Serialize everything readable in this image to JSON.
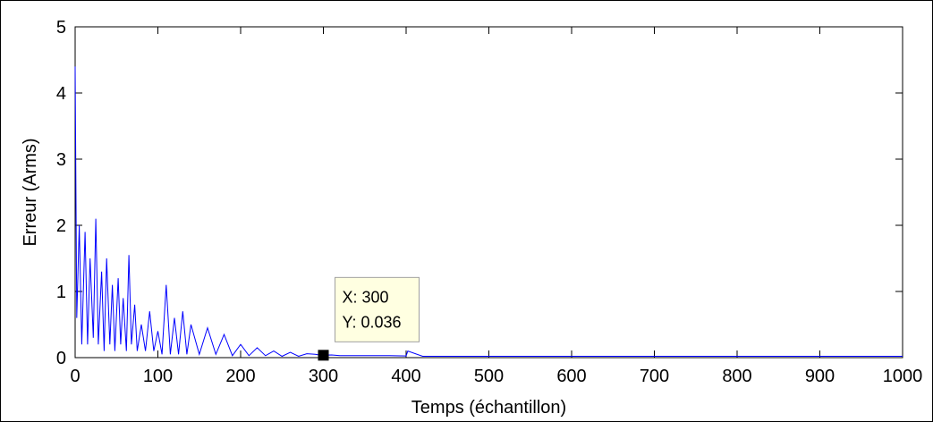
{
  "chart_data": {
    "type": "line",
    "xlabel": "Temps (échantillon)",
    "ylabel": "Erreur (Arms)",
    "xlim": [
      0,
      1000
    ],
    "ylim": [
      0,
      5
    ],
    "xticks": [
      0,
      100,
      200,
      300,
      400,
      500,
      600,
      700,
      800,
      900,
      1000
    ],
    "yticks": [
      0,
      1,
      2,
      3,
      4,
      5
    ],
    "grid": false,
    "line_color": "#0000ff",
    "series": [
      {
        "x": [
          0,
          2,
          5,
          8,
          12,
          15,
          18,
          22,
          25,
          28,
          32,
          35,
          38,
          42,
          45,
          48,
          52,
          55,
          58,
          62,
          65,
          68,
          72,
          75,
          80,
          85,
          90,
          95,
          100,
          105,
          110,
          115,
          120,
          125,
          130,
          135,
          140,
          150,
          160,
          170,
          180,
          190,
          200,
          210,
          220,
          230,
          240,
          250,
          260,
          270,
          280,
          290,
          295,
          300,
          310,
          320,
          350,
          380,
          400,
          402,
          420,
          450,
          500,
          600,
          700,
          800,
          900,
          1000
        ],
        "y": [
          4.4,
          0.6,
          2.0,
          0.2,
          1.9,
          0.2,
          1.5,
          0.3,
          2.1,
          0.2,
          1.3,
          0.1,
          1.5,
          0.2,
          1.1,
          0.1,
          1.2,
          0.2,
          0.9,
          0.1,
          1.55,
          0.2,
          0.8,
          0.1,
          0.5,
          0.1,
          0.7,
          0.1,
          0.4,
          0.05,
          1.1,
          0.05,
          0.6,
          0.05,
          0.7,
          0.05,
          0.5,
          0.05,
          0.45,
          0.05,
          0.35,
          0.03,
          0.2,
          0.03,
          0.15,
          0.03,
          0.1,
          0.02,
          0.08,
          0.02,
          0.06,
          0.05,
          0.04,
          0.036,
          0.04,
          0.03,
          0.03,
          0.03,
          0.025,
          0.1,
          0.02,
          0.02,
          0.02,
          0.02,
          0.02,
          0.02,
          0.02,
          0.02
        ]
      }
    ],
    "datatip": {
      "x": 300,
      "y": 0.036
    },
    "annotations": [
      "X: 300",
      "Y: 0.036"
    ]
  }
}
